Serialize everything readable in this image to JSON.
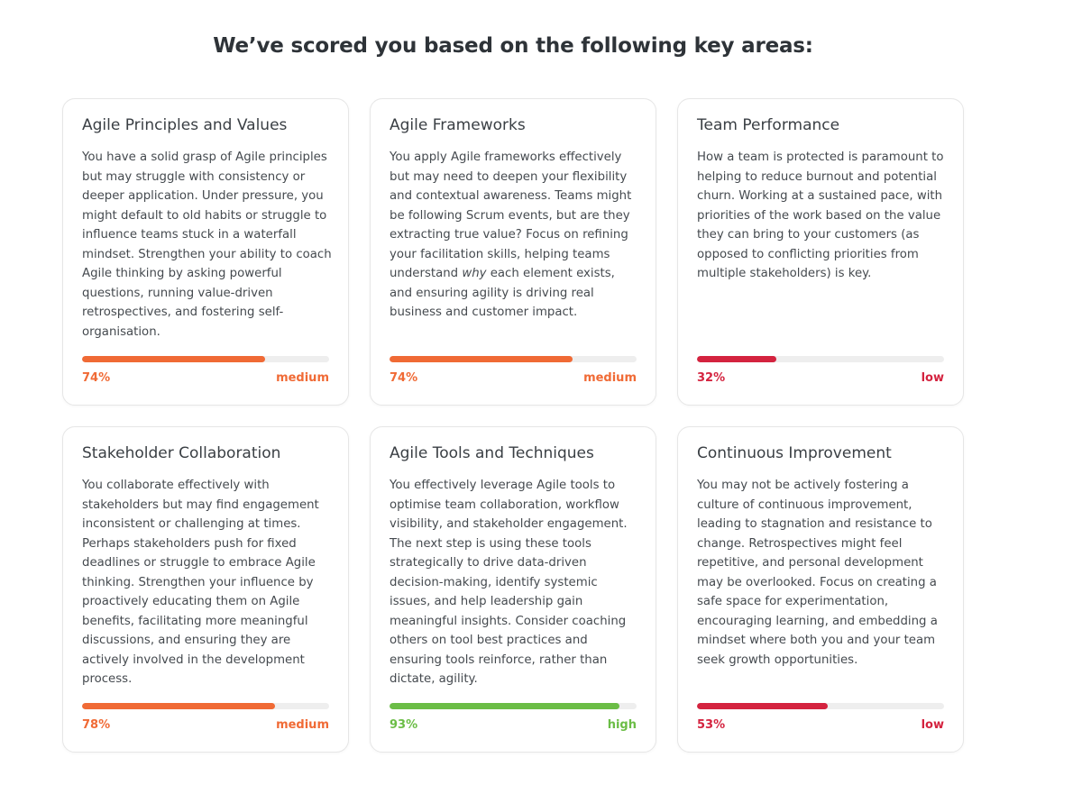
{
  "heading": "We’ve scored you based on the following key areas:",
  "colors": {
    "medium": "#f06a35",
    "low": "#d4233f",
    "high": "#6bbd46",
    "track": "#eeeeee"
  },
  "cards": [
    {
      "title": "Agile Principles and Values",
      "text_before": "You have a solid grasp of Agile principles\nbut may struggle with consistency or\ndeeper application. Under pressure, you\nmight default to old habits or struggle to\ninfluence teams stuck in a waterfall\nmindset. Strengthen your ability to coach\nAgile thinking by asking powerful\nquestions, running value-driven\nretrospectives, and fostering self-\norganisation.",
      "text_em": "",
      "text_after": "",
      "percent": 74,
      "percent_label": "74%",
      "level": "medium"
    },
    {
      "title": "Agile Frameworks",
      "text_before": "You apply Agile frameworks effectively\nbut may need to deepen your flexibility\nand contextual awareness. Teams might\nbe following Scrum events, but are they\nextracting true value? Focus on refining\nyour facilitation skills, helping teams\nunderstand ",
      "text_em": "why",
      "text_after": " each element exists,\nand ensuring agility is driving real\nbusiness and customer impact.",
      "percent": 74,
      "percent_label": "74%",
      "level": "medium"
    },
    {
      "title": "Team Performance",
      "text_before": "How a team is protected is paramount to\nhelping to reduce burnout and potential\nchurn. Working at a sustained pace, with\npriorities of the work based on the value\nthey can bring to your customers (as\nopposed to conflicting priorities from\nmultiple stakeholders) is key.",
      "text_em": "",
      "text_after": "",
      "percent": 32,
      "percent_label": "32%",
      "level": "low"
    },
    {
      "title": "Stakeholder Collaboration",
      "text_before": "You collaborate effectively with\nstakeholders but may find engagement\ninconsistent or challenging at times.\nPerhaps stakeholders push for fixed\ndeadlines or struggle to embrace Agile\nthinking. Strengthen your influence by\nproactively educating them on Agile\nbenefits, facilitating more meaningful\ndiscussions, and ensuring they are\nactively involved in the development\nprocess.",
      "text_em": "",
      "text_after": "",
      "percent": 78,
      "percent_label": "78%",
      "level": "medium"
    },
    {
      "title": "Agile Tools and Techniques",
      "text_before": "You effectively leverage Agile tools to\noptimise team collaboration, workflow\nvisibility, and stakeholder engagement.\nThe next step is using these tools\nstrategically to drive data-driven\ndecision-making, identify systemic\nissues, and help leadership gain\nmeaningful insights. Consider coaching\nothers on tool best practices and\nensuring tools reinforce, rather than\ndictate, agility.",
      "text_em": "",
      "text_after": "",
      "percent": 93,
      "percent_label": "93%",
      "level": "high"
    },
    {
      "title": "Continuous Improvement",
      "text_before": "You may not be actively fostering a\nculture of continuous improvement,\nleading to stagnation and resistance to\nchange. Retrospectives might feel\nrepetitive, and personal development\nmay be overlooked. Focus on creating a\nsafe space for experimentation,\nencouraging learning, and embedding a\nmindset where both you and your team\nseek growth opportunities.",
      "text_em": "",
      "text_after": "",
      "percent": 53,
      "percent_label": "53%",
      "level": "low"
    }
  ]
}
